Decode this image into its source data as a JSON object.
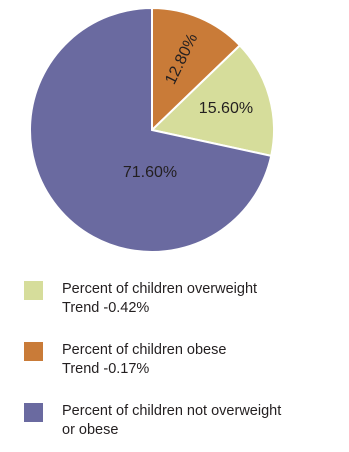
{
  "chart_data": {
    "type": "pie",
    "slices": [
      {
        "label": "Percent of children overweight",
        "value": 15.6,
        "display": "15.60%",
        "color": "#d6dd9b"
      },
      {
        "label": "Percent of children obese",
        "value": 12.8,
        "display": "12.80%",
        "color": "#c97b38"
      },
      {
        "label": "Percent of children not overweight or obese",
        "value": 71.6,
        "display": "71.60%",
        "color": "#6a6aa0"
      }
    ],
    "start_angle_deg": 0,
    "direction": "clockwise",
    "slice_order_from_start": [
      "Percent of children obese",
      "Percent of children overweight",
      "Percent of children not overweight or obese"
    ],
    "legend_placement": "bottom"
  },
  "legend": [
    {
      "line1": "Percent of children overweight",
      "line2": "Trend -0.42%",
      "color": "#d6dd9b"
    },
    {
      "line1": "Percent of children obese",
      "line2": "Trend -0.17%",
      "color": "#c97b38"
    },
    {
      "line1": "Percent of children not overweight",
      "line2": "or obese",
      "color": "#6a6aa0"
    }
  ]
}
